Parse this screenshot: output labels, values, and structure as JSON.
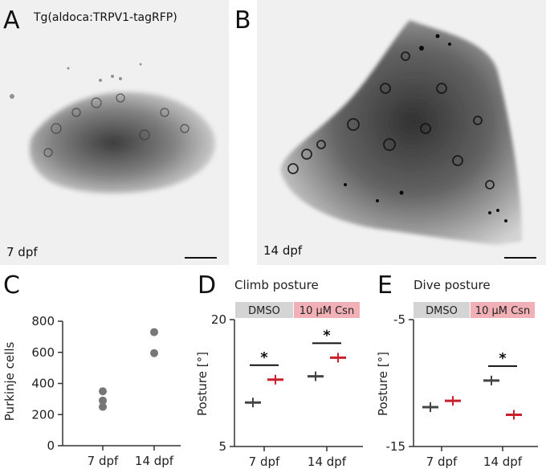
{
  "panels": {
    "A": {
      "letter": "A",
      "transgene": "Tg(aldoca:TRPV1-tagRFP)",
      "stage": "7 dpf"
    },
    "B": {
      "letter": "B",
      "stage": "14 dpf"
    },
    "C": {
      "letter": "C"
    },
    "D": {
      "letter": "D",
      "title": "Climb posture"
    },
    "E": {
      "letter": "E",
      "title": "Dive posture"
    }
  },
  "treatments": {
    "control": "DMSO",
    "drug": "10 µM Csn"
  },
  "colors": {
    "control": "#444444",
    "drug": "#c8202c",
    "dmso_box": "#d4d4d4",
    "csn_box": "#f0b0b6"
  },
  "significance": "*",
  "chart_data": [
    {
      "type": "scatter",
      "panel": "C",
      "ylabel": "Purkinje cells",
      "categories": [
        "7 dpf",
        "14 dpf"
      ],
      "ylim": [
        0,
        800
      ],
      "yticks": [
        0,
        200,
        400,
        600,
        800
      ],
      "points": [
        {
          "x": "7 dpf",
          "y": 350
        },
        {
          "x": "7 dpf",
          "y": 290
        },
        {
          "x": "7 dpf",
          "y": 250
        },
        {
          "x": "14 dpf",
          "y": 730
        },
        {
          "x": "14 dpf",
          "y": 595
        }
      ]
    },
    {
      "type": "scatter",
      "panel": "D",
      "ylabel": "Posture [°]",
      "categories": [
        "7 dpf",
        "14 dpf"
      ],
      "ylim": [
        5,
        20
      ],
      "yticks": [
        5,
        20
      ],
      "series": [
        {
          "name": "DMSO",
          "values": [
            10.2,
            13.3
          ]
        },
        {
          "name": "10 µM Csn",
          "values": [
            12.9,
            15.5
          ]
        }
      ],
      "significant": [
        "7 dpf",
        "14 dpf"
      ]
    },
    {
      "type": "scatter",
      "panel": "E",
      "ylabel": "Posture [°]",
      "categories": [
        "7 dpf",
        "14 dpf"
      ],
      "ylim": [
        -15,
        -5
      ],
      "yticks": [
        -15,
        -5
      ],
      "series": [
        {
          "name": "DMSO",
          "values": [
            -11.9,
            -9.8
          ]
        },
        {
          "name": "10 µM Csn",
          "values": [
            -11.4,
            -12.5
          ]
        }
      ],
      "significant": [
        "14 dpf"
      ]
    }
  ]
}
